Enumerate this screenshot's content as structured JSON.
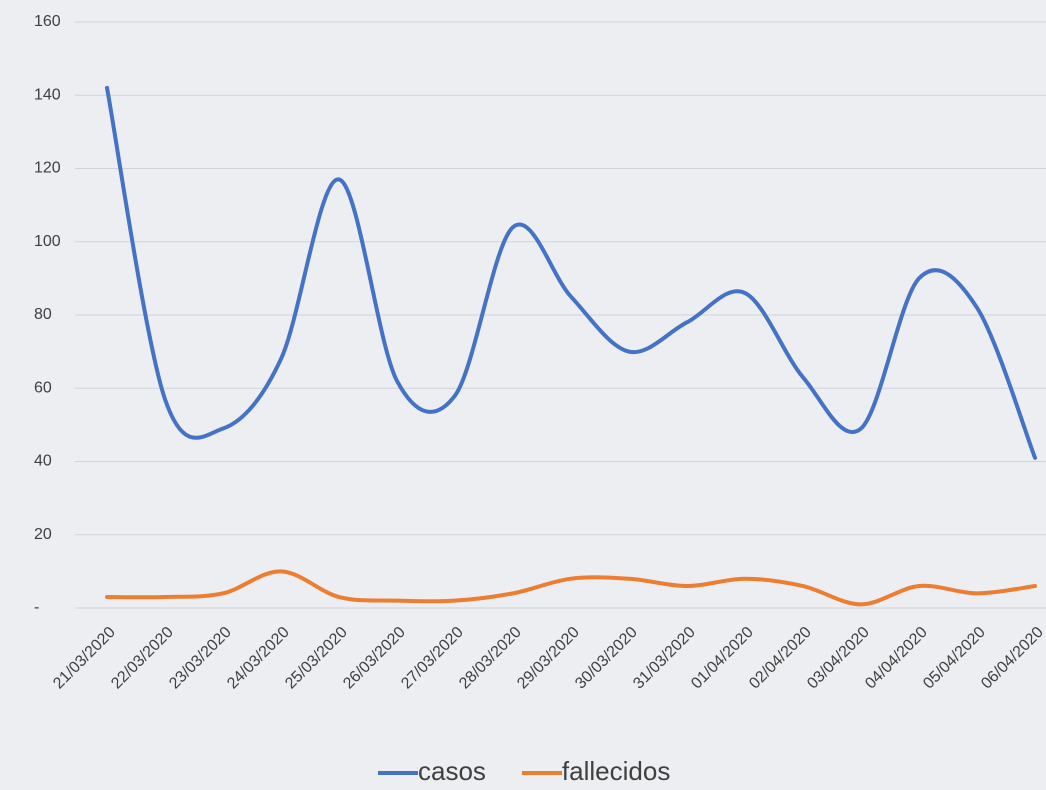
{
  "chart_data": {
    "type": "line",
    "categories": [
      "21/03/2020",
      "22/03/2020",
      "23/03/2020",
      "24/03/2020",
      "25/03/2020",
      "26/03/2020",
      "27/03/2020",
      "28/03/2020",
      "29/03/2020",
      "30/03/2020",
      "31/03/2020",
      "01/04/2020",
      "02/04/2020",
      "03/04/2020",
      "04/04/2020",
      "05/04/2020",
      "06/04/2020"
    ],
    "series": [
      {
        "name": "casos",
        "color": "#4472c4",
        "values": [
          142,
          57,
          49,
          68,
          117,
          62,
          58,
          104,
          85,
          70,
          78,
          86,
          63,
          49,
          90,
          82,
          41
        ]
      },
      {
        "name": "fallecidos",
        "color": "#ed7d31",
        "values": [
          3,
          3,
          4,
          10,
          3,
          2,
          2,
          4,
          8,
          8,
          6,
          8,
          6,
          1,
          6,
          4,
          6
        ]
      }
    ],
    "ylim": [
      0,
      160
    ],
    "yticks": [
      {
        "value": 0,
        "label": "-"
      },
      20,
      40,
      60,
      80,
      100,
      120,
      140,
      160
    ],
    "grid": true,
    "legend": "bottom",
    "smooth": true
  }
}
